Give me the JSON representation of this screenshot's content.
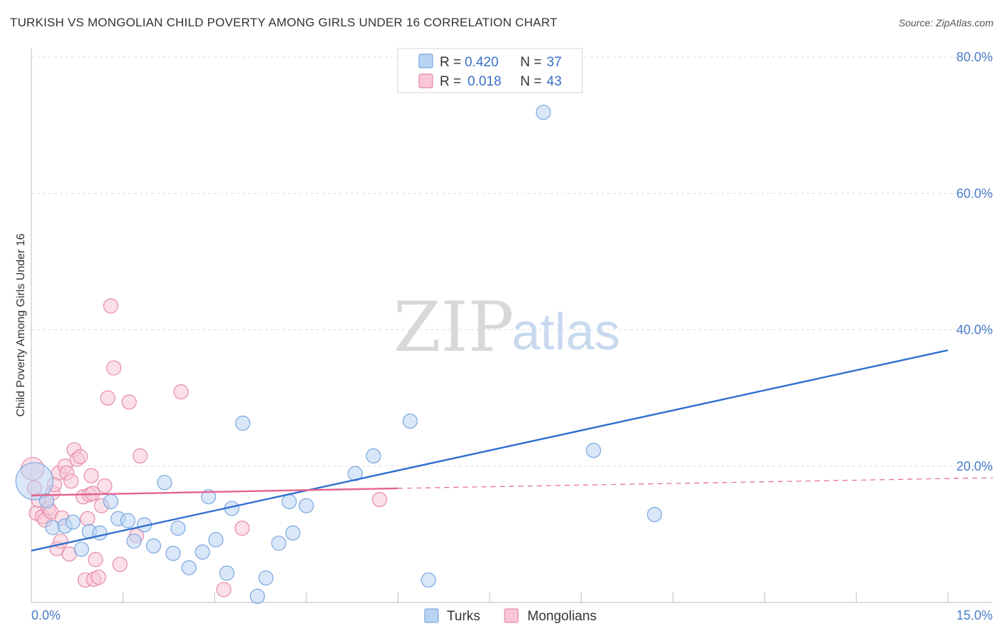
{
  "header": {
    "title": "TURKISH VS MONGOLIAN CHILD POVERTY AMONG GIRLS UNDER 16 CORRELATION CHART",
    "source": "Source: ZipAtlas.com"
  },
  "watermark": {
    "zip": "ZIP",
    "atlas": "atlas"
  },
  "colors": {
    "turks_fill": "#b9d3f3",
    "turks_stroke": "#7aa6df",
    "turks_line": "#2f6fcf",
    "mong_fill": "#f8c6d6",
    "mong_stroke": "#e58aa8",
    "mong_line": "#e4648f",
    "grid": "#dcdcdc",
    "axis_text": "#4a7cc9"
  },
  "legend": {
    "rows": [
      {
        "r_label": "R =",
        "r_value": "0.420",
        "n_label": "N =",
        "n_value": "37"
      },
      {
        "r_label": "R =",
        "r_value": "0.018",
        "n_label": "N =",
        "n_value": "43"
      }
    ]
  },
  "chart_data": {
    "type": "scatter",
    "title": "TURKISH VS MONGOLIAN CHILD POVERTY AMONG GIRLS UNDER 16 CORRELATION CHART",
    "xlabel": "",
    "ylabel": "Child Poverty Among Girls Under 16",
    "xlim": [
      0,
      15
    ],
    "ylim": [
      0,
      80
    ],
    "x_tick_labels": [
      "0.0%",
      "15.0%"
    ],
    "y_ticks": [
      20,
      40,
      60,
      80
    ],
    "y_tick_labels": [
      "20.0%",
      "40.0%",
      "60.0%",
      "80.0%"
    ],
    "legend_position": "top-center",
    "series": [
      {
        "name": "Turks",
        "r": 0.42,
        "n": 37,
        "trend": {
          "x0": 0,
          "y0": 7.6,
          "x1": 15,
          "y1": 37.0
        },
        "points": [
          [
            0.05,
            17.8,
            26
          ],
          [
            0.25,
            14.9,
            10
          ],
          [
            0.35,
            11.0,
            10
          ],
          [
            0.55,
            11.2,
            10
          ],
          [
            0.68,
            11.8,
            10
          ],
          [
            0.82,
            7.8,
            10
          ],
          [
            0.95,
            10.4,
            10
          ],
          [
            1.12,
            10.2,
            10
          ],
          [
            1.3,
            14.8,
            10
          ],
          [
            1.42,
            12.3,
            10
          ],
          [
            1.58,
            12.0,
            10
          ],
          [
            1.68,
            9.0,
            10
          ],
          [
            1.85,
            11.4,
            10
          ],
          [
            2.0,
            8.3,
            10
          ],
          [
            2.18,
            17.6,
            10
          ],
          [
            2.32,
            7.2,
            10
          ],
          [
            2.4,
            10.9,
            10
          ],
          [
            2.58,
            5.1,
            10
          ],
          [
            2.8,
            7.4,
            10
          ],
          [
            2.9,
            15.5,
            10
          ],
          [
            3.02,
            9.2,
            10
          ],
          [
            3.28,
            13.8,
            10
          ],
          [
            3.46,
            26.3,
            10
          ],
          [
            3.84,
            3.6,
            10
          ],
          [
            4.05,
            8.7,
            10
          ],
          [
            4.22,
            14.8,
            10
          ],
          [
            4.28,
            10.2,
            10
          ],
          [
            4.5,
            14.2,
            10
          ],
          [
            5.3,
            18.9,
            10
          ],
          [
            5.6,
            21.5,
            10
          ],
          [
            6.2,
            26.6,
            10
          ],
          [
            6.5,
            3.3,
            10
          ],
          [
            8.38,
            71.9,
            10
          ],
          [
            9.2,
            22.3,
            10
          ],
          [
            10.2,
            12.9,
            10
          ],
          [
            3.2,
            4.3,
            10
          ],
          [
            3.7,
            0.9,
            10
          ]
        ]
      },
      {
        "name": "Mongolians",
        "r": 0.018,
        "n": 43,
        "trend": {
          "x0": 0,
          "y0": 15.7,
          "x1": 15,
          "y1": 18.3,
          "solid_until_x": 6.0
        },
        "points": [
          [
            0.02,
            19.6,
            16
          ],
          [
            0.05,
            16.8,
            10
          ],
          [
            0.08,
            13.1,
            10
          ],
          [
            0.12,
            15.0,
            10
          ],
          [
            0.18,
            12.6,
            10
          ],
          [
            0.22,
            12.1,
            10
          ],
          [
            0.28,
            13.8,
            10
          ],
          [
            0.32,
            13.3,
            10
          ],
          [
            0.35,
            16.1,
            10
          ],
          [
            0.38,
            17.3,
            10
          ],
          [
            0.42,
            7.9,
            10
          ],
          [
            0.45,
            19.0,
            10
          ],
          [
            0.48,
            9.0,
            10
          ],
          [
            0.5,
            12.4,
            10
          ],
          [
            0.55,
            20.0,
            10
          ],
          [
            0.58,
            19.0,
            10
          ],
          [
            0.62,
            7.1,
            10
          ],
          [
            0.65,
            17.8,
            10
          ],
          [
            0.7,
            22.4,
            10
          ],
          [
            0.75,
            21.0,
            10
          ],
          [
            0.8,
            21.4,
            10
          ],
          [
            0.85,
            15.5,
            10
          ],
          [
            0.88,
            3.3,
            10
          ],
          [
            0.92,
            12.3,
            10
          ],
          [
            0.95,
            15.8,
            10
          ],
          [
            0.98,
            18.6,
            10
          ],
          [
            1.0,
            16.0,
            10
          ],
          [
            1.02,
            3.4,
            10
          ],
          [
            1.05,
            6.3,
            10
          ],
          [
            1.1,
            3.7,
            10
          ],
          [
            1.15,
            14.2,
            10
          ],
          [
            1.2,
            17.1,
            10
          ],
          [
            1.25,
            30.0,
            10
          ],
          [
            1.3,
            43.5,
            10
          ],
          [
            1.35,
            34.4,
            10
          ],
          [
            1.45,
            5.6,
            10
          ],
          [
            1.6,
            29.4,
            10
          ],
          [
            1.72,
            9.8,
            10
          ],
          [
            1.78,
            21.5,
            10
          ],
          [
            2.45,
            30.9,
            10
          ],
          [
            3.15,
            1.9,
            10
          ],
          [
            3.45,
            10.9,
            10
          ],
          [
            5.7,
            15.1,
            10
          ]
        ]
      }
    ]
  },
  "bottom_legend": [
    "Turks",
    "Mongolians"
  ]
}
